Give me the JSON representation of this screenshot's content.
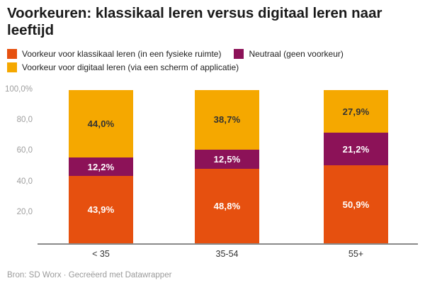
{
  "title": "Voorkeuren: klassikaal leren versus digitaal leren naar leeftijd",
  "footer": "Bron: SD Worx · Gecreëerd met Datawrapper",
  "colors": {
    "classroom_orange": "#E6500F",
    "neutral_purple": "#8C1258",
    "digital_yellow": "#F5A800",
    "axis_line": "#8a8a8a",
    "tick_text": "#9e9e9e",
    "label_on_dark": "#ffffff",
    "label_on_yellow": "#333333"
  },
  "legend": {
    "rows": [
      [
        {
          "label": "Voorkeur voor klassikaal leren (in een fysieke ruimte)",
          "color": "#E6500F"
        },
        {
          "label": "Neutraal (geen voorkeur)",
          "color": "#8C1258"
        }
      ],
      [
        {
          "label": "Voorkeur voor digitaal leren (via een scherm of applicatie)",
          "color": "#F5A800"
        }
      ]
    ]
  },
  "chart_data": {
    "type": "bar",
    "stacked": true,
    "title": "Voorkeuren: klassikaal leren versus digitaal leren naar leeftijd",
    "categories": [
      "< 35",
      "35-54",
      "55+"
    ],
    "series": [
      {
        "name": "Voorkeur voor klassikaal leren (in een fysieke ruimte)",
        "color": "#E6500F",
        "values": [
          43.9,
          48.8,
          50.9
        ],
        "value_labels": [
          "43,9%",
          "48,8%",
          "50,9%"
        ],
        "label_color": "#ffffff"
      },
      {
        "name": "Neutraal (geen voorkeur)",
        "color": "#8C1258",
        "values": [
          12.2,
          12.5,
          21.2
        ],
        "value_labels": [
          "12,2%",
          "12,5%",
          "21,2%"
        ],
        "label_color": "#ffffff"
      },
      {
        "name": "Voorkeur voor digitaal leren (via een scherm of applicatie)",
        "color": "#F5A800",
        "values": [
          44.0,
          38.7,
          27.9
        ],
        "value_labels": [
          "44,0%",
          "38,7%",
          "27,9%"
        ],
        "label_color": "#333333"
      }
    ],
    "y_ticks": [
      "100,0%",
      "80,0",
      "60,0",
      "40,0",
      "20,0"
    ],
    "y_tick_values": [
      100,
      80,
      60,
      40,
      20
    ],
    "ylim": [
      0,
      100
    ],
    "grid": false,
    "legend_position": "top",
    "xlabel": "",
    "ylabel": ""
  }
}
